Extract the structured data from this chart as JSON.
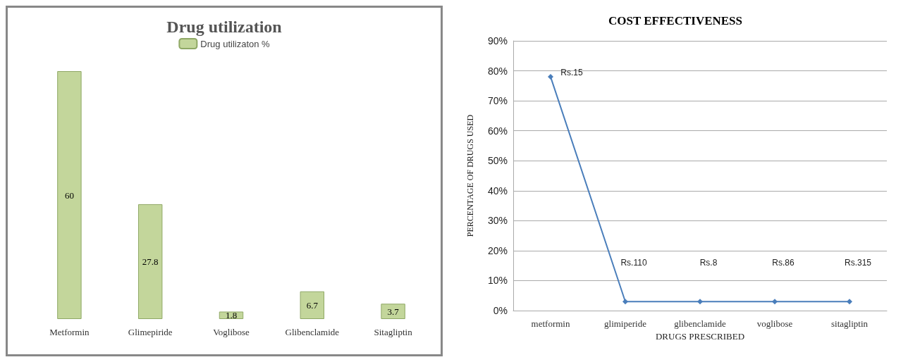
{
  "chart_data": [
    {
      "type": "bar",
      "title": "Drug utilization",
      "categories": [
        "Metformin",
        "Glimepiride",
        "Voglibose",
        "Glibenclamide",
        "Sitagliptin"
      ],
      "series": [
        {
          "name": "Drug utilizaton %",
          "color": "#c3d69b",
          "values": [
            60,
            27.8,
            1.8,
            6.7,
            3.7
          ]
        }
      ],
      "data_labels": true,
      "legend": "top",
      "grid": false
    },
    {
      "type": "line",
      "title": "COST EFFECTIVENESS",
      "xlabel": "DRUGS PRESCRIBED",
      "ylabel": "PERCENTAGE OF DRUGS USED",
      "categories": [
        "metformin",
        "glimiperide",
        "glibenclamide",
        "voglibose",
        "sitagliptin"
      ],
      "series": [
        {
          "color": "#4a7ebb",
          "values": [
            78,
            3,
            3,
            3,
            3
          ]
        }
      ],
      "ylim": [
        0,
        90
      ],
      "yticks": [
        {
          "value": 0,
          "label": "0%"
        },
        {
          "value": 10,
          "label": "10%"
        },
        {
          "value": 20,
          "label": "20%"
        },
        {
          "value": 30,
          "label": "30%"
        },
        {
          "value": 40,
          "label": "40%"
        },
        {
          "value": 50,
          "label": "50%"
        },
        {
          "value": 60,
          "label": "60%"
        },
        {
          "value": 70,
          "label": "70%"
        },
        {
          "value": 80,
          "label": "80%"
        },
        {
          "value": 90,
          "label": "90%"
        }
      ],
      "grid": "y",
      "marker": "diamond",
      "line_style": "solid",
      "legend": false,
      "annotations": [
        "Rs.15",
        "Rs.110",
        "Rs.8",
        "Rs.86",
        "Rs.315"
      ]
    }
  ]
}
